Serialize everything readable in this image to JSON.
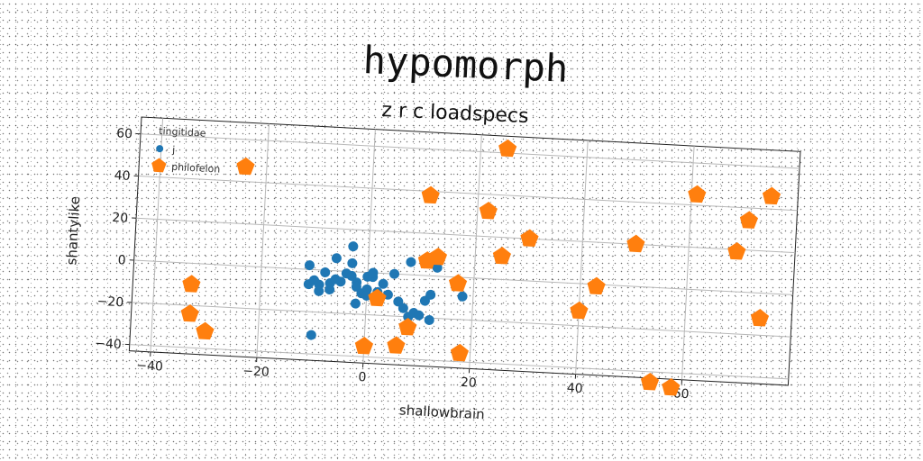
{
  "chart_data": {
    "type": "scatter",
    "title": "hypomorph",
    "subtitle": "z r c loadspecs",
    "xlabel": "shallowbrain",
    "ylabel": "shantylike",
    "xlim": [
      -44,
      80
    ],
    "ylim": [
      -43,
      68
    ],
    "xticks": [
      -40,
      -20,
      0,
      20,
      40,
      60
    ],
    "yticks": [
      -40,
      -20,
      0,
      20,
      40,
      60
    ],
    "grid": true,
    "legend": {
      "title": "tingitidae",
      "placement": "top-left"
    },
    "series": [
      {
        "name": "j",
        "color": "#1f77b4",
        "marker": "circle",
        "points": [
          [
            -11,
            2
          ],
          [
            -11,
            -7
          ],
          [
            -10,
            -5
          ],
          [
            -9,
            -7
          ],
          [
            -9,
            -10
          ],
          [
            -10,
            -31
          ],
          [
            -8,
            -1
          ],
          [
            -7,
            -9
          ],
          [
            -7,
            -6
          ],
          [
            -6,
            -4
          ],
          [
            -6,
            6
          ],
          [
            -5,
            -5
          ],
          [
            -4,
            -1
          ],
          [
            -3,
            -2
          ],
          [
            -3,
            4
          ],
          [
            -3,
            12
          ],
          [
            -2,
            -5
          ],
          [
            -2,
            -7
          ],
          [
            -2,
            -15
          ],
          [
            -1,
            -10
          ],
          [
            0,
            -2
          ],
          [
            0,
            -8
          ],
          [
            0,
            -11
          ],
          [
            1,
            -2
          ],
          [
            1,
            0
          ],
          [
            2,
            -9
          ],
          [
            3,
            -5
          ],
          [
            4,
            -10
          ],
          [
            5,
            0
          ],
          [
            6,
            -13
          ],
          [
            7,
            -16
          ],
          [
            8,
            -20
          ],
          [
            8,
            6
          ],
          [
            9,
            -18
          ],
          [
            10,
            -19
          ],
          [
            11,
            -12
          ],
          [
            12,
            -9
          ],
          [
            12,
            -21
          ],
          [
            13,
            4
          ],
          [
            18,
            -9
          ]
        ]
      },
      {
        "name": "philofelon",
        "color": "#ff7f0e",
        "marker": "pentagon",
        "points": [
          [
            -24,
            47
          ],
          [
            -33,
            -10
          ],
          [
            -33,
            -24
          ],
          [
            -30,
            -32
          ],
          [
            0,
            -35
          ],
          [
            2,
            -12
          ],
          [
            6,
            -34
          ],
          [
            8,
            -25
          ],
          [
            11,
            38
          ],
          [
            11,
            7
          ],
          [
            13,
            9
          ],
          [
            17,
            -3
          ],
          [
            18,
            -36
          ],
          [
            22,
            32
          ],
          [
            25,
            62
          ],
          [
            25,
            11
          ],
          [
            30,
            20
          ],
          [
            40,
            -13
          ],
          [
            43,
            -1
          ],
          [
            50,
            20
          ],
          [
            54,
            -45
          ],
          [
            58,
            -47
          ],
          [
            61,
            45
          ],
          [
            69,
            19
          ],
          [
            71,
            34
          ],
          [
            74,
            -12
          ],
          [
            75,
            46
          ]
        ]
      }
    ]
  }
}
